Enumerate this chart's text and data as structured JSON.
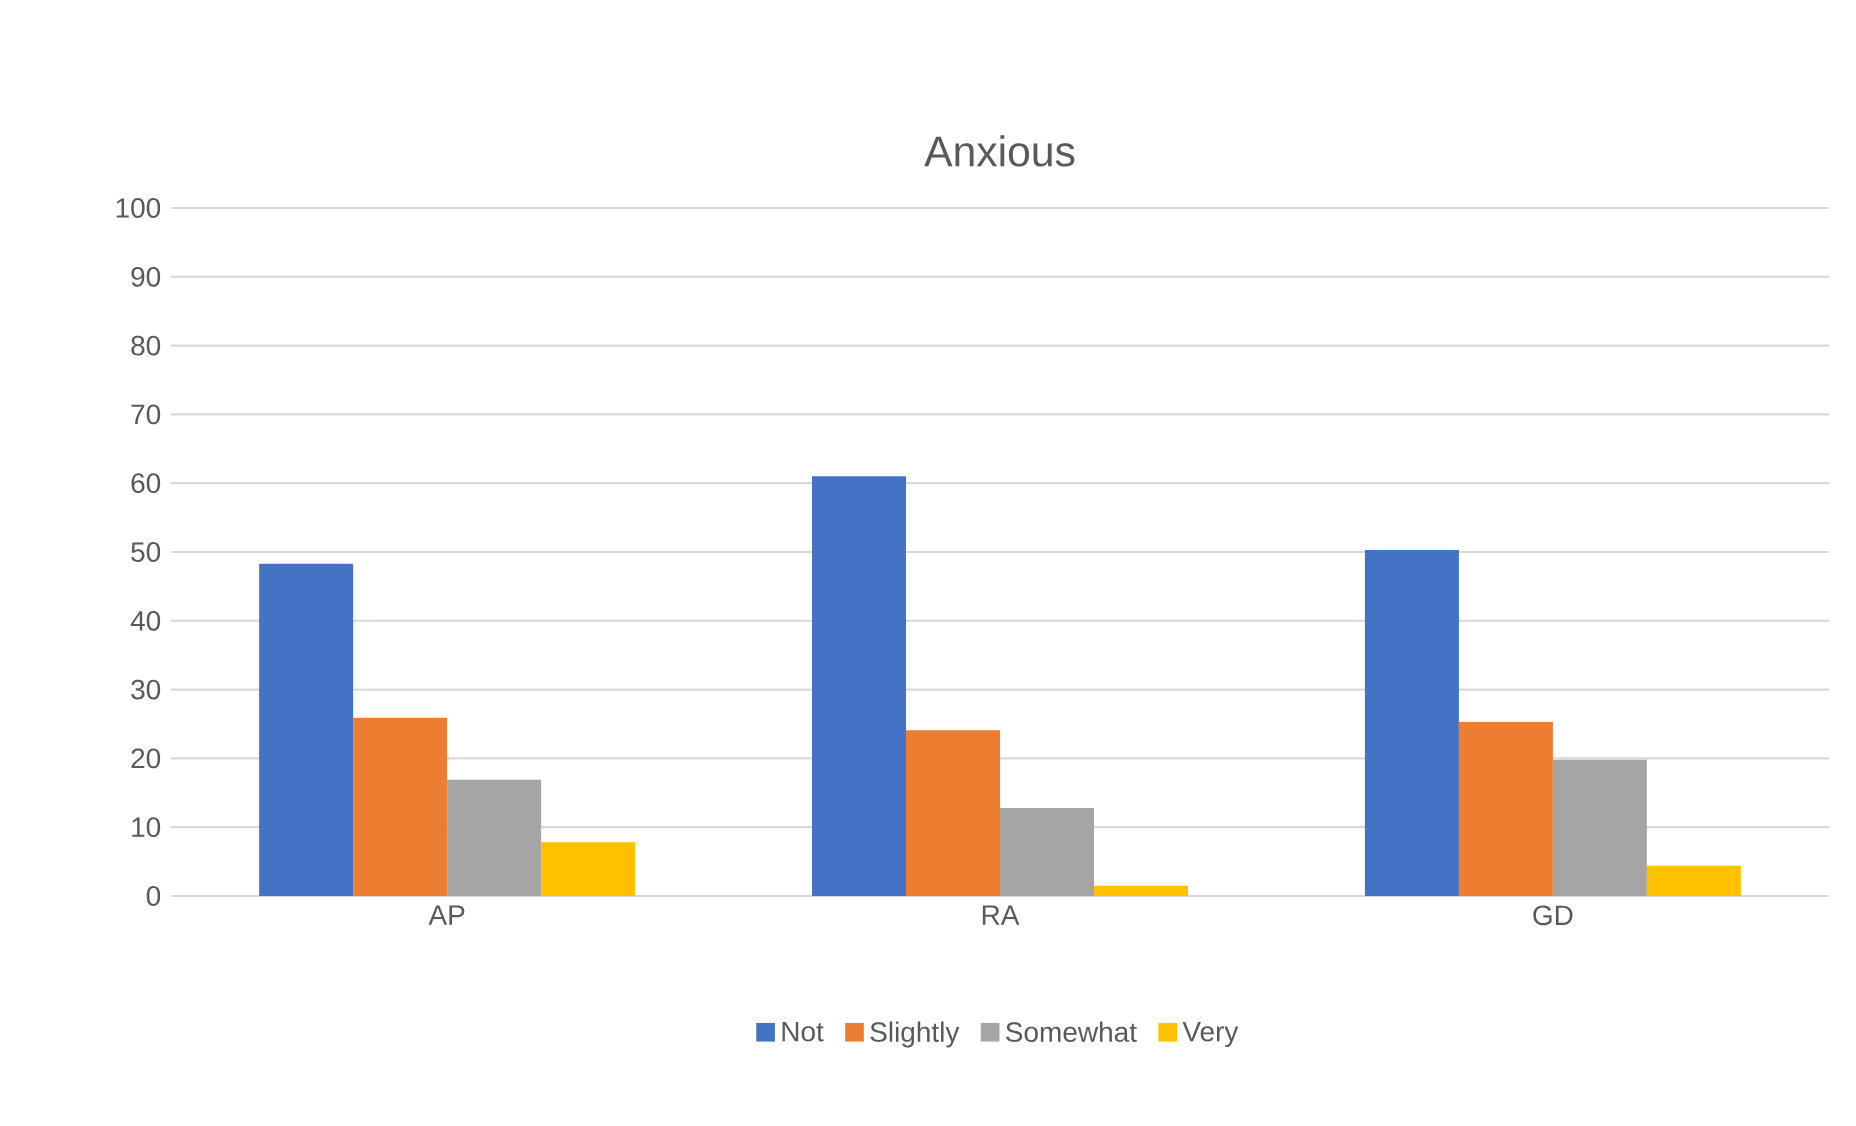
{
  "chart_data": {
    "type": "bar",
    "title": "Anxious",
    "categories": [
      "AP",
      "RA",
      "GD"
    ],
    "series": [
      {
        "name": "Not",
        "color": "#4472c4",
        "values": [
          48.3,
          61.0,
          50.3
        ]
      },
      {
        "name": "Slightly",
        "color": "#ed7d31",
        "values": [
          25.9,
          24.1,
          25.3
        ]
      },
      {
        "name": "Somewhat",
        "color": "#a5a5a5",
        "values": [
          16.9,
          12.8,
          19.8
        ]
      },
      {
        "name": "Very",
        "color": "#ffc000",
        "values": [
          7.8,
          1.5,
          4.4
        ]
      }
    ],
    "ylim": [
      0,
      100
    ],
    "yticks": [
      0,
      10,
      20,
      30,
      40,
      50,
      60,
      70,
      80,
      90,
      100
    ],
    "grid": "y",
    "legend": "bottom"
  }
}
